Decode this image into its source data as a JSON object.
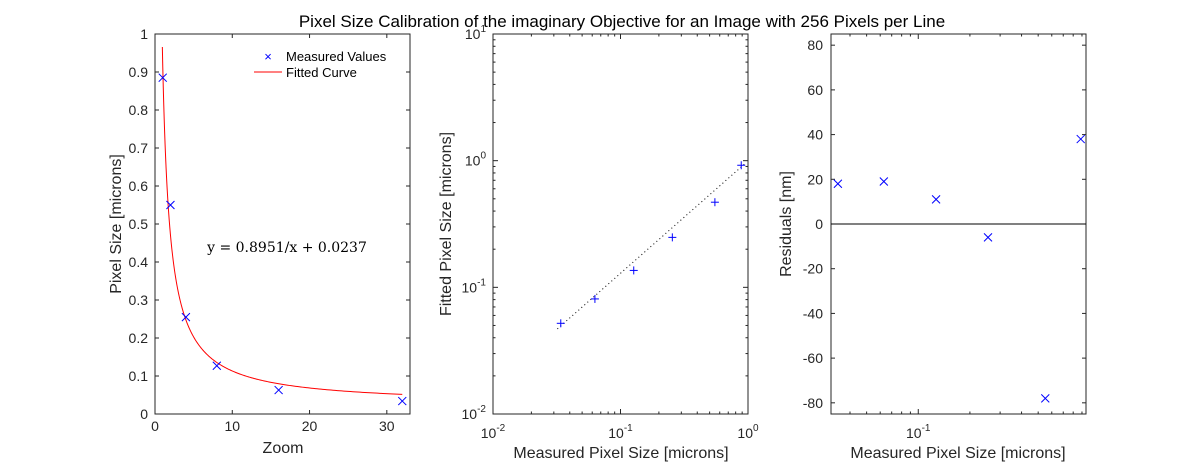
{
  "figure_title": "Pixel Size Calibration of the imaginary Objective for an Image with 256 Pixels per Line",
  "chart_data": [
    {
      "type": "scatter",
      "xlabel": "Zoom",
      "ylabel": "Pixel Size [microns]",
      "xlim": [
        0,
        33
      ],
      "ylim": [
        0,
        1
      ],
      "xticks": [
        "0",
        "10",
        "20",
        "30"
      ],
      "yticks": [
        "0",
        "0.1",
        "0.2",
        "0.3",
        "0.4",
        "0.5",
        "0.6",
        "0.7",
        "0.8",
        "0.9",
        "1"
      ],
      "annotation": "y = 0.8951/x + 0.0237",
      "legend": {
        "position": "top-right",
        "entries": [
          "Measured Values",
          "Fitted Curve"
        ]
      },
      "series": [
        {
          "name": "Measured Values",
          "marker": "x",
          "color": "#0000ff",
          "x": [
            1,
            2,
            4,
            8,
            16,
            32
          ],
          "y": [
            0.885,
            0.55,
            0.255,
            0.127,
            0.063,
            0.034
          ]
        },
        {
          "name": "Fitted Curve",
          "line": true,
          "color": "#ff0000",
          "fit": {
            "a": 0.8951,
            "b": 0.0237,
            "xmin": 0.95,
            "xmax": 32
          }
        }
      ]
    },
    {
      "type": "scatter",
      "xscale": "log",
      "yscale": "log",
      "xlabel": "Measured Pixel Size [microns]",
      "ylabel": "Fitted Pixel Size [microns]",
      "xlim": [
        0.01,
        1
      ],
      "ylim": [
        0.01,
        10
      ],
      "xticks": [
        {
          "base": "10",
          "exp": "-2"
        },
        {
          "base": "10",
          "exp": "-1"
        },
        {
          "base": "10",
          "exp": "0"
        }
      ],
      "yticks": [
        {
          "base": "10",
          "exp": "-2"
        },
        {
          "base": "10",
          "exp": "-1"
        },
        {
          "base": "10",
          "exp": "0"
        },
        {
          "base": "10",
          "exp": "1"
        }
      ],
      "series": [
        {
          "marker": "+",
          "color": "#0000ff",
          "x": [
            0.034,
            0.063,
            0.127,
            0.255,
            0.55,
            0.885
          ],
          "y": [
            0.052,
            0.081,
            0.136,
            0.248,
            0.47,
            0.92
          ]
        },
        {
          "line": "dotted",
          "color": "#000000",
          "x": [
            0.032,
            0.95
          ],
          "y": [
            0.047,
            0.95
          ]
        }
      ]
    },
    {
      "type": "scatter",
      "xscale": "log",
      "xlabel": "Measured Pixel Size [microns]",
      "ylabel": "Residuals [nm]",
      "xlim": [
        0.031,
        0.95
      ],
      "ylim": [
        -85,
        85
      ],
      "xticks": [
        {
          "base": "10",
          "exp": "-1"
        }
      ],
      "yticks": [
        "-80",
        "-60",
        "-40",
        "-20",
        "0",
        "20",
        "40",
        "60",
        "80"
      ],
      "zero_line": true,
      "series": [
        {
          "marker": "x",
          "color": "#0000ff",
          "x": [
            0.034,
            0.063,
            0.127,
            0.255,
            0.55,
            0.885
          ],
          "y": [
            18,
            19,
            11,
            -6,
            -78,
            38
          ]
        }
      ]
    }
  ]
}
